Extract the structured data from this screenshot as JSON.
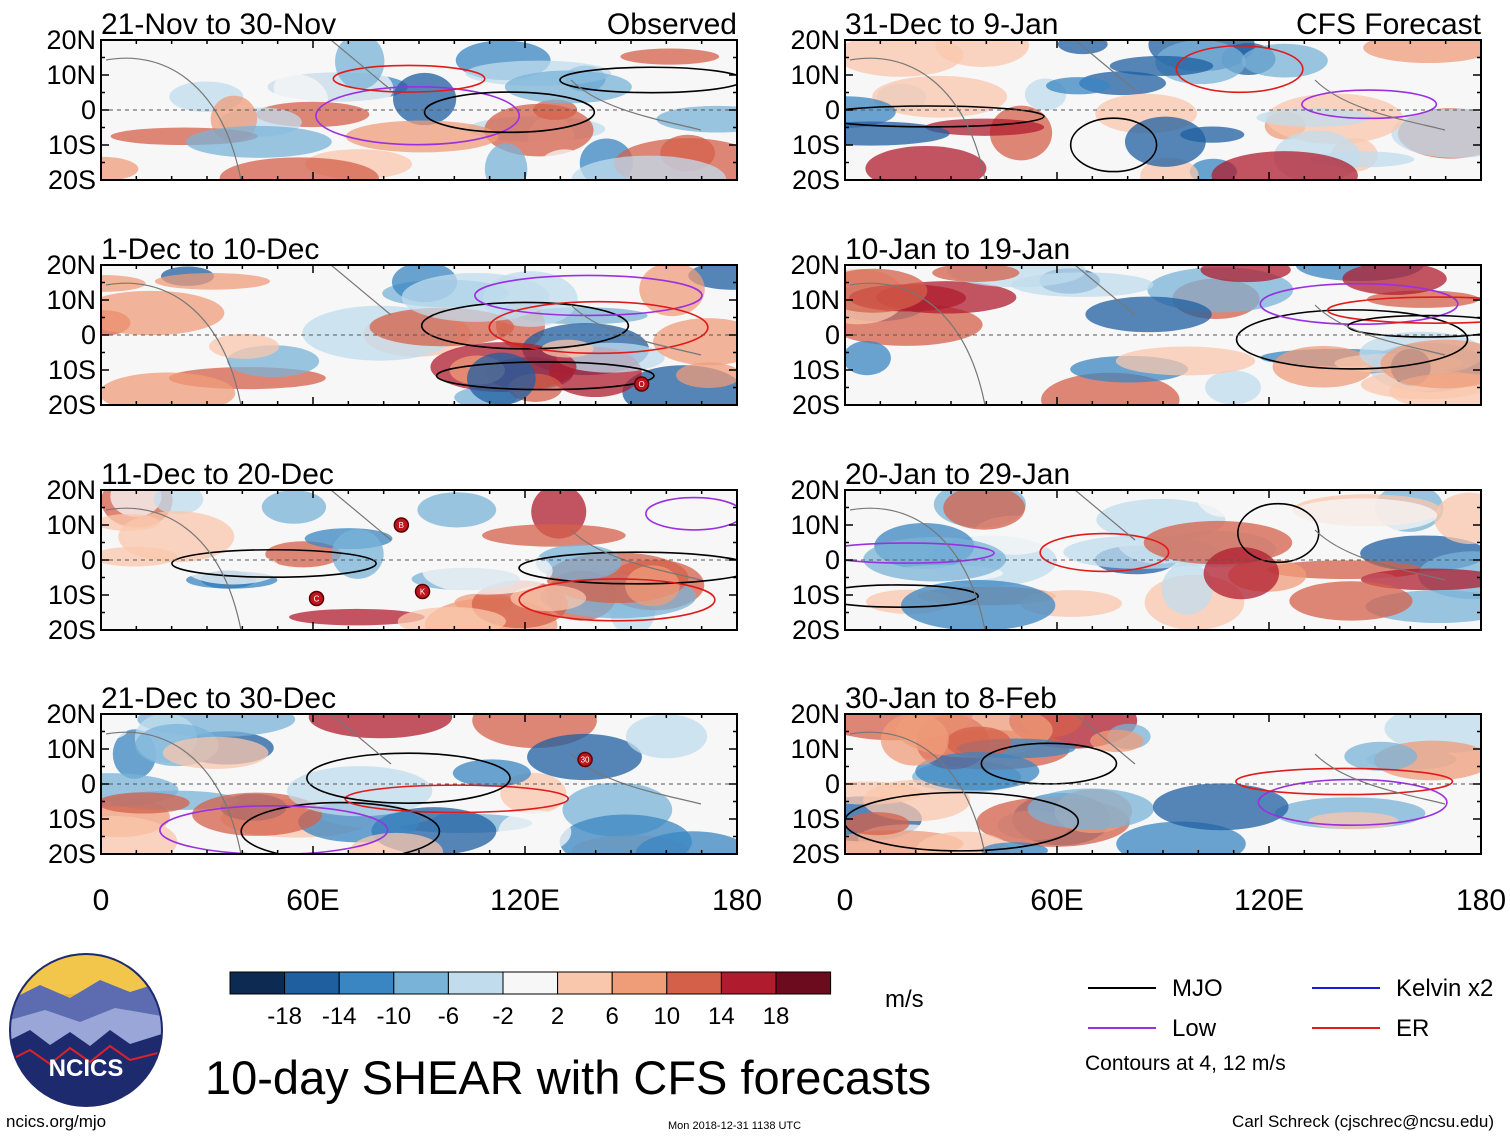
{
  "figure": {
    "title": "10-day SHEAR with CFS forecasts",
    "units": "m/s",
    "site": "ncics.org/mjo",
    "timestamp": "Mon 2018-12-31 1138 UTC",
    "credit": "Carl Schreck (cjschrec@ncsu.edu)",
    "logo_text": "NCICS",
    "contours_note": "Contours at 4, 12 m/s"
  },
  "legend": {
    "items": [
      {
        "label": "MJO",
        "color": "#000000"
      },
      {
        "label": "Kelvin x2",
        "color": "#1a1ad6"
      },
      {
        "label": "Low",
        "color": "#9b30e0"
      },
      {
        "label": "ER",
        "color": "#e01b1b"
      }
    ]
  },
  "colorbar": {
    "tick_labels": [
      "-18",
      "-14",
      "-10",
      "-6",
      "-2",
      "2",
      "6",
      "10",
      "14",
      "18"
    ],
    "colors": [
      "#0c2a52",
      "#1f5fa0",
      "#3a86c2",
      "#7ab3d8",
      "#c0dced",
      "#f7f7f7",
      "#f9c7ac",
      "#ef9c79",
      "#d4604a",
      "#b01c2e",
      "#6c0a1e"
    ]
  },
  "chart_data": {
    "type": "heatmap",
    "variable": "10-day SHEAR anomaly (m/s)",
    "x_ticks": [
      "0",
      "60E",
      "120E",
      "180"
    ],
    "xlim": [
      0,
      180
    ],
    "y_ticks": [
      "20N",
      "10N",
      "0",
      "10S",
      "20S"
    ],
    "ylim": [
      -20,
      20
    ],
    "column_headers": [
      "Observed",
      "CFS Forecast"
    ],
    "panels": [
      {
        "period": "21-Nov to 30-Nov",
        "column": 0,
        "row": 0
      },
      {
        "period": "1-Dec to 10-Dec",
        "column": 0,
        "row": 1
      },
      {
        "period": "11-Dec to 20-Dec",
        "column": 0,
        "row": 2
      },
      {
        "period": "21-Dec to 30-Dec",
        "column": 0,
        "row": 3
      },
      {
        "period": "31-Dec to 9-Jan",
        "column": 1,
        "row": 0
      },
      {
        "period": "10-Jan to 19-Jan",
        "column": 1,
        "row": 1
      },
      {
        "period": "20-Jan to 29-Jan",
        "column": 1,
        "row": 2
      },
      {
        "period": "30-Jan to 8-Feb",
        "column": 1,
        "row": 3
      }
    ],
    "storm_markers": [
      {
        "panel": 1,
        "label": "O",
        "lon": 153,
        "lat": -14
      },
      {
        "panel": 2,
        "label": "B",
        "lon": 85,
        "lat": 10
      },
      {
        "panel": 2,
        "label": "C",
        "lon": 61,
        "lat": -11
      },
      {
        "panel": 2,
        "label": "K",
        "lon": 91,
        "lat": -9
      },
      {
        "panel": 3,
        "label": "30",
        "lon": 137,
        "lat": 7
      }
    ]
  }
}
